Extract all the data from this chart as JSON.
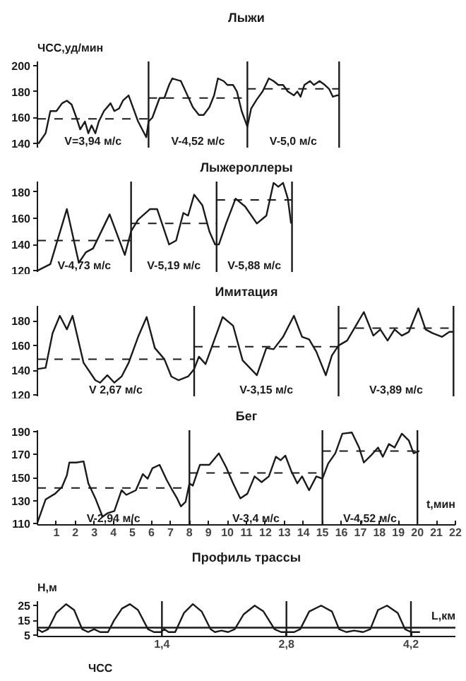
{
  "chart_data": [
    {
      "type": "line",
      "title": "Лыжи",
      "ylabel": "ЧСС,уд/мин",
      "xlim": [
        0,
        22
      ],
      "ylim": [
        137,
        203
      ],
      "yticks": [
        140,
        160,
        180,
        200
      ],
      "tick_labels": "y",
      "series": [
        {
          "color": "#1a1a1a",
          "x": [
            0.05,
            0.43,
            0.68,
            1.0,
            1.3,
            1.55,
            1.8,
            2.05,
            2.25,
            2.5,
            2.68,
            2.85,
            3.05,
            3.23,
            3.5,
            3.85,
            4.05,
            4.3,
            4.5,
            4.8,
            5.05,
            5.3,
            5.55,
            5.73,
            5.85,
            6.05,
            6.43,
            6.68,
            6.93,
            7.1,
            7.55,
            7.93,
            8.18,
            8.5,
            8.75,
            9.05,
            9.3,
            9.5,
            9.8,
            10.0,
            10.3,
            10.5,
            10.75,
            11.05,
            11.25,
            11.55,
            11.85,
            12.18,
            12.43,
            12.68,
            12.93,
            13.18,
            13.5,
            13.68,
            13.85,
            14.05,
            14.35,
            14.55,
            14.85,
            15.13,
            15.35,
            15.55,
            15.75,
            15.88
          ],
          "values": [
            140,
            148,
            165,
            165,
            171,
            173,
            170,
            160,
            151,
            157,
            148,
            154,
            148,
            157,
            165,
            171,
            165,
            167,
            173,
            177,
            167,
            157,
            150,
            145,
            157,
            160,
            175,
            175,
            185,
            190,
            188,
            176,
            168,
            162,
            162,
            168,
            177,
            190,
            188,
            185,
            185,
            180,
            165,
            153,
            167,
            174,
            180,
            190,
            188,
            185,
            185,
            180,
            177,
            180,
            176,
            185,
            188,
            185,
            188,
            185,
            182,
            176,
            177,
            177
          ]
        },
        {
          "type": "line",
          "line_style": "dashed",
          "color": "#1a1a1a",
          "x": [
            0,
            5.85
          ],
          "values": [
            159,
            159
          ]
        },
        {
          "type": "line",
          "line_style": "dashed",
          "color": "#1a1a1a",
          "x": [
            5.85,
            11.05
          ],
          "values": [
            175,
            175
          ]
        },
        {
          "type": "line",
          "line_style": "dashed",
          "color": "#1a1a1a",
          "x": [
            11.05,
            15.88
          ],
          "values": [
            182,
            182
          ]
        }
      ],
      "ref_lines": [
        {
          "axis": "x",
          "value": 5.85
        },
        {
          "axis": "x",
          "value": 11.05
        },
        {
          "axis": "x",
          "value": 15.88
        }
      ],
      "annotations": [
        "V=3,94 м/с",
        "V-4,52 м/с",
        "V-5,0 м/с"
      ]
    },
    {
      "type": "line",
      "title": "Лыжероллеры",
      "xlim": [
        0,
        22
      ],
      "ylim": [
        119,
        188
      ],
      "yticks": [
        120,
        140,
        160,
        180
      ],
      "tick_labels": "y",
      "series": [
        {
          "color": "#1a1a1a",
          "x": [
            0,
            0.68,
            1.55,
            2.18,
            2.55,
            2.93,
            3.8,
            4.6,
            4.93,
            5.3,
            5.93,
            6.3,
            6.93,
            7.3,
            7.68,
            7.93,
            8.25,
            8.68,
            9.05,
            9.35,
            9.55,
            9.93,
            10.43,
            10.93,
            11.55,
            12.05,
            12.43,
            12.68,
            12.93,
            13.18,
            13.35
          ],
          "values": [
            120,
            125,
            167,
            126,
            134,
            137,
            163,
            132,
            150,
            159,
            167,
            167,
            140,
            143,
            164,
            162,
            178,
            170,
            150,
            140,
            140,
            156,
            175,
            169,
            156,
            162,
            187,
            184,
            187,
            175,
            156
          ]
        },
        {
          "type": "line",
          "line_style": "dashed",
          "color": "#1a1a1a",
          "x": [
            0,
            4.93
          ],
          "values": [
            143,
            143
          ]
        },
        {
          "type": "line",
          "line_style": "dashed",
          "color": "#1a1a1a",
          "x": [
            4.93,
            9.43
          ],
          "values": [
            156,
            156
          ]
        },
        {
          "type": "line",
          "line_style": "dashed",
          "color": "#1a1a1a",
          "x": [
            9.43,
            13.4
          ],
          "values": [
            174,
            174
          ]
        }
      ],
      "ref_lines": [
        {
          "axis": "x",
          "value": 4.93
        },
        {
          "axis": "x",
          "value": 9.43
        },
        {
          "axis": "x",
          "value": 13.4
        }
      ],
      "annotations": [
        "V-4,73 м/с",
        "V-5,19 м/с",
        "V-5,88 м/с"
      ]
    },
    {
      "type": "line",
      "title": "Имитация",
      "xlim": [
        0,
        22
      ],
      "ylim": [
        119,
        192
      ],
      "yticks": [
        120,
        140,
        160,
        180
      ],
      "tick_labels": "y",
      "series": [
        {
          "color": "#1a1a1a",
          "x": [
            0,
            0.43,
            0.8,
            1.18,
            1.55,
            1.85,
            2.43,
            3.05,
            3.3,
            3.68,
            4.05,
            4.43,
            4.8,
            5.3,
            5.75,
            6.18,
            6.68,
            7.05,
            7.43,
            7.93,
            8.25,
            8.5,
            8.85,
            9.3,
            9.75,
            10.3,
            10.8,
            11.55,
            12.05,
            12.43,
            12.93,
            13.5,
            13.93,
            14.3,
            14.68,
            15.18,
            15.5,
            15.85,
            16.3,
            17.18,
            17.68,
            18.05,
            18.43,
            18.8,
            19.18,
            19.55,
            20.05,
            20.43,
            20.8,
            21.3,
            21.68,
            21.93
          ],
          "values": [
            141,
            142,
            170,
            184,
            173,
            184,
            146,
            132,
            130,
            136,
            130,
            135,
            146,
            167,
            183,
            158,
            149,
            135,
            132,
            135,
            141,
            151,
            145,
            164,
            183,
            176,
            148,
            136,
            158,
            157,
            167,
            184,
            167,
            165,
            155,
            136,
            152,
            160,
            164,
            187,
            168,
            173,
            164,
            173,
            168,
            171,
            190,
            173,
            170,
            167,
            171,
            171
          ]
        },
        {
          "type": "line",
          "line_style": "dashed",
          "color": "#1a1a1a",
          "x": [
            0,
            8.25
          ],
          "values": [
            149,
            149
          ]
        },
        {
          "type": "line",
          "line_style": "dashed",
          "color": "#1a1a1a",
          "x": [
            8.25,
            15.85
          ],
          "values": [
            159,
            159
          ]
        },
        {
          "type": "line",
          "line_style": "dashed",
          "color": "#1a1a1a",
          "x": [
            15.85,
            21.9
          ],
          "values": [
            174,
            174
          ]
        }
      ],
      "ref_lines": [
        {
          "axis": "x",
          "value": 8.25
        },
        {
          "axis": "x",
          "value": 15.85
        },
        {
          "axis": "x",
          "value": 21.9
        }
      ],
      "annotations": [
        "V 2,67 м/с",
        "V-3,15 м/с",
        "V-3,89 м/с"
      ]
    },
    {
      "type": "line",
      "title": "Бег",
      "xlabel": "t,мин",
      "xlim": [
        0,
        22
      ],
      "ylim": [
        109,
        191
      ],
      "yticks": [
        110,
        130,
        150,
        170,
        190
      ],
      "xticks": [
        1,
        2,
        3,
        4,
        5,
        6,
        7,
        8,
        9,
        10,
        11,
        12,
        13,
        14,
        15,
        16,
        17,
        18,
        19,
        20,
        21,
        22
      ],
      "series": [
        {
          "color": "#1a1a1a",
          "x": [
            0,
            0.43,
            0.93,
            1.3,
            1.55,
            1.68,
            2.05,
            2.43,
            2.68,
            3.05,
            3.43,
            3.68,
            4.05,
            4.43,
            4.68,
            5.18,
            5.55,
            5.8,
            6.05,
            6.43,
            6.8,
            7.1,
            7.35,
            7.55,
            7.8,
            8.0,
            8.18,
            8.55,
            9.05,
            9.55,
            9.93,
            10.3,
            10.68,
            11.05,
            11.43,
            11.8,
            12.18,
            12.55,
            12.8,
            13.05,
            13.35,
            13.68,
            13.93,
            14.3,
            14.68,
            15.0,
            15.3,
            15.68,
            16.05,
            16.55,
            16.93,
            17.18,
            17.55,
            17.93,
            18.18,
            18.5,
            18.8,
            19.18,
            19.55,
            19.8,
            20.1
          ],
          "values": [
            111,
            131,
            136,
            142,
            152,
            163,
            163,
            164,
            145,
            132,
            116,
            119,
            121,
            139,
            135,
            139,
            153,
            149,
            158,
            161,
            148,
            139,
            132,
            125,
            129,
            145,
            143,
            161,
            161,
            171,
            159,
            145,
            132,
            136,
            151,
            146,
            151,
            168,
            165,
            169,
            156,
            145,
            151,
            139,
            151,
            149,
            162,
            171,
            188,
            189,
            176,
            163,
            169,
            176,
            168,
            179,
            176,
            188,
            182,
            171,
            173
          ]
        },
        {
          "type": "line",
          "line_style": "dashed",
          "color": "#1a1a1a",
          "x": [
            0,
            8
          ],
          "values": [
            141,
            141
          ]
        },
        {
          "type": "line",
          "line_style": "dashed",
          "color": "#1a1a1a",
          "x": [
            8,
            15
          ],
          "values": [
            154,
            154
          ]
        },
        {
          "type": "line",
          "line_style": "dashed",
          "color": "#1a1a1a",
          "x": [
            15,
            20
          ],
          "values": [
            173,
            173
          ]
        }
      ],
      "ref_lines": [
        {
          "axis": "x",
          "value": 8
        },
        {
          "axis": "x",
          "value": 15
        },
        {
          "axis": "x",
          "value": 20
        }
      ],
      "annotations": [
        "V-2,94 м/с",
        "V-3,4 м/с",
        "V-4,52 м/с"
      ]
    },
    {
      "type": "line",
      "title": "Профиль трассы",
      "ylabel": "H,м",
      "xlabel": "L,км",
      "xlim": [
        0,
        4.7
      ],
      "ylim": [
        4,
        28
      ],
      "yticks": [
        5,
        15,
        25
      ],
      "xticks": [
        {
          "value": 1.4,
          "label": "1,4"
        },
        {
          "value": 2.8,
          "label": "2,8"
        },
        {
          "value": 4.2,
          "label": "4,2"
        }
      ],
      "series": [
        {
          "color": "#1a1a1a",
          "x": [
            0,
            0.054,
            0.121,
            0.211,
            0.323,
            0.413,
            0.503,
            0.57,
            0.637,
            0.705,
            0.794,
            0.862,
            0.951,
            1.041,
            1.131,
            1.243,
            1.31,
            1.387,
            1.425,
            1.474,
            1.549,
            1.648,
            1.748,
            1.847,
            1.946,
            1.996,
            2.07,
            2.145,
            2.219,
            2.318,
            2.443,
            2.542,
            2.666,
            2.74,
            2.82,
            2.887,
            2.955,
            3.056,
            3.19,
            3.312,
            3.392,
            3.473,
            3.56,
            3.662,
            3.743,
            3.83,
            3.931,
            4.052,
            4.133,
            4.2,
            4.301
          ],
          "values": [
            9,
            7,
            9,
            20,
            26,
            22,
            9,
            7,
            9,
            7,
            7,
            15,
            23,
            26,
            22,
            9,
            7,
            7,
            9,
            7,
            7,
            20,
            26,
            21,
            9,
            7,
            8,
            7,
            9,
            19,
            25,
            21,
            9,
            7,
            7,
            7,
            9,
            21,
            25,
            21,
            9,
            7,
            8,
            7,
            9,
            22,
            25,
            20,
            9,
            7,
            7
          ]
        }
      ],
      "ref_lines": [
        {
          "axis": "y",
          "value": 10
        },
        {
          "axis": "x",
          "value": 1.4
        },
        {
          "axis": "x",
          "value": 2.8
        },
        {
          "axis": "x",
          "value": 4.2
        }
      ],
      "annotations": [
        "ЧСС"
      ]
    }
  ]
}
